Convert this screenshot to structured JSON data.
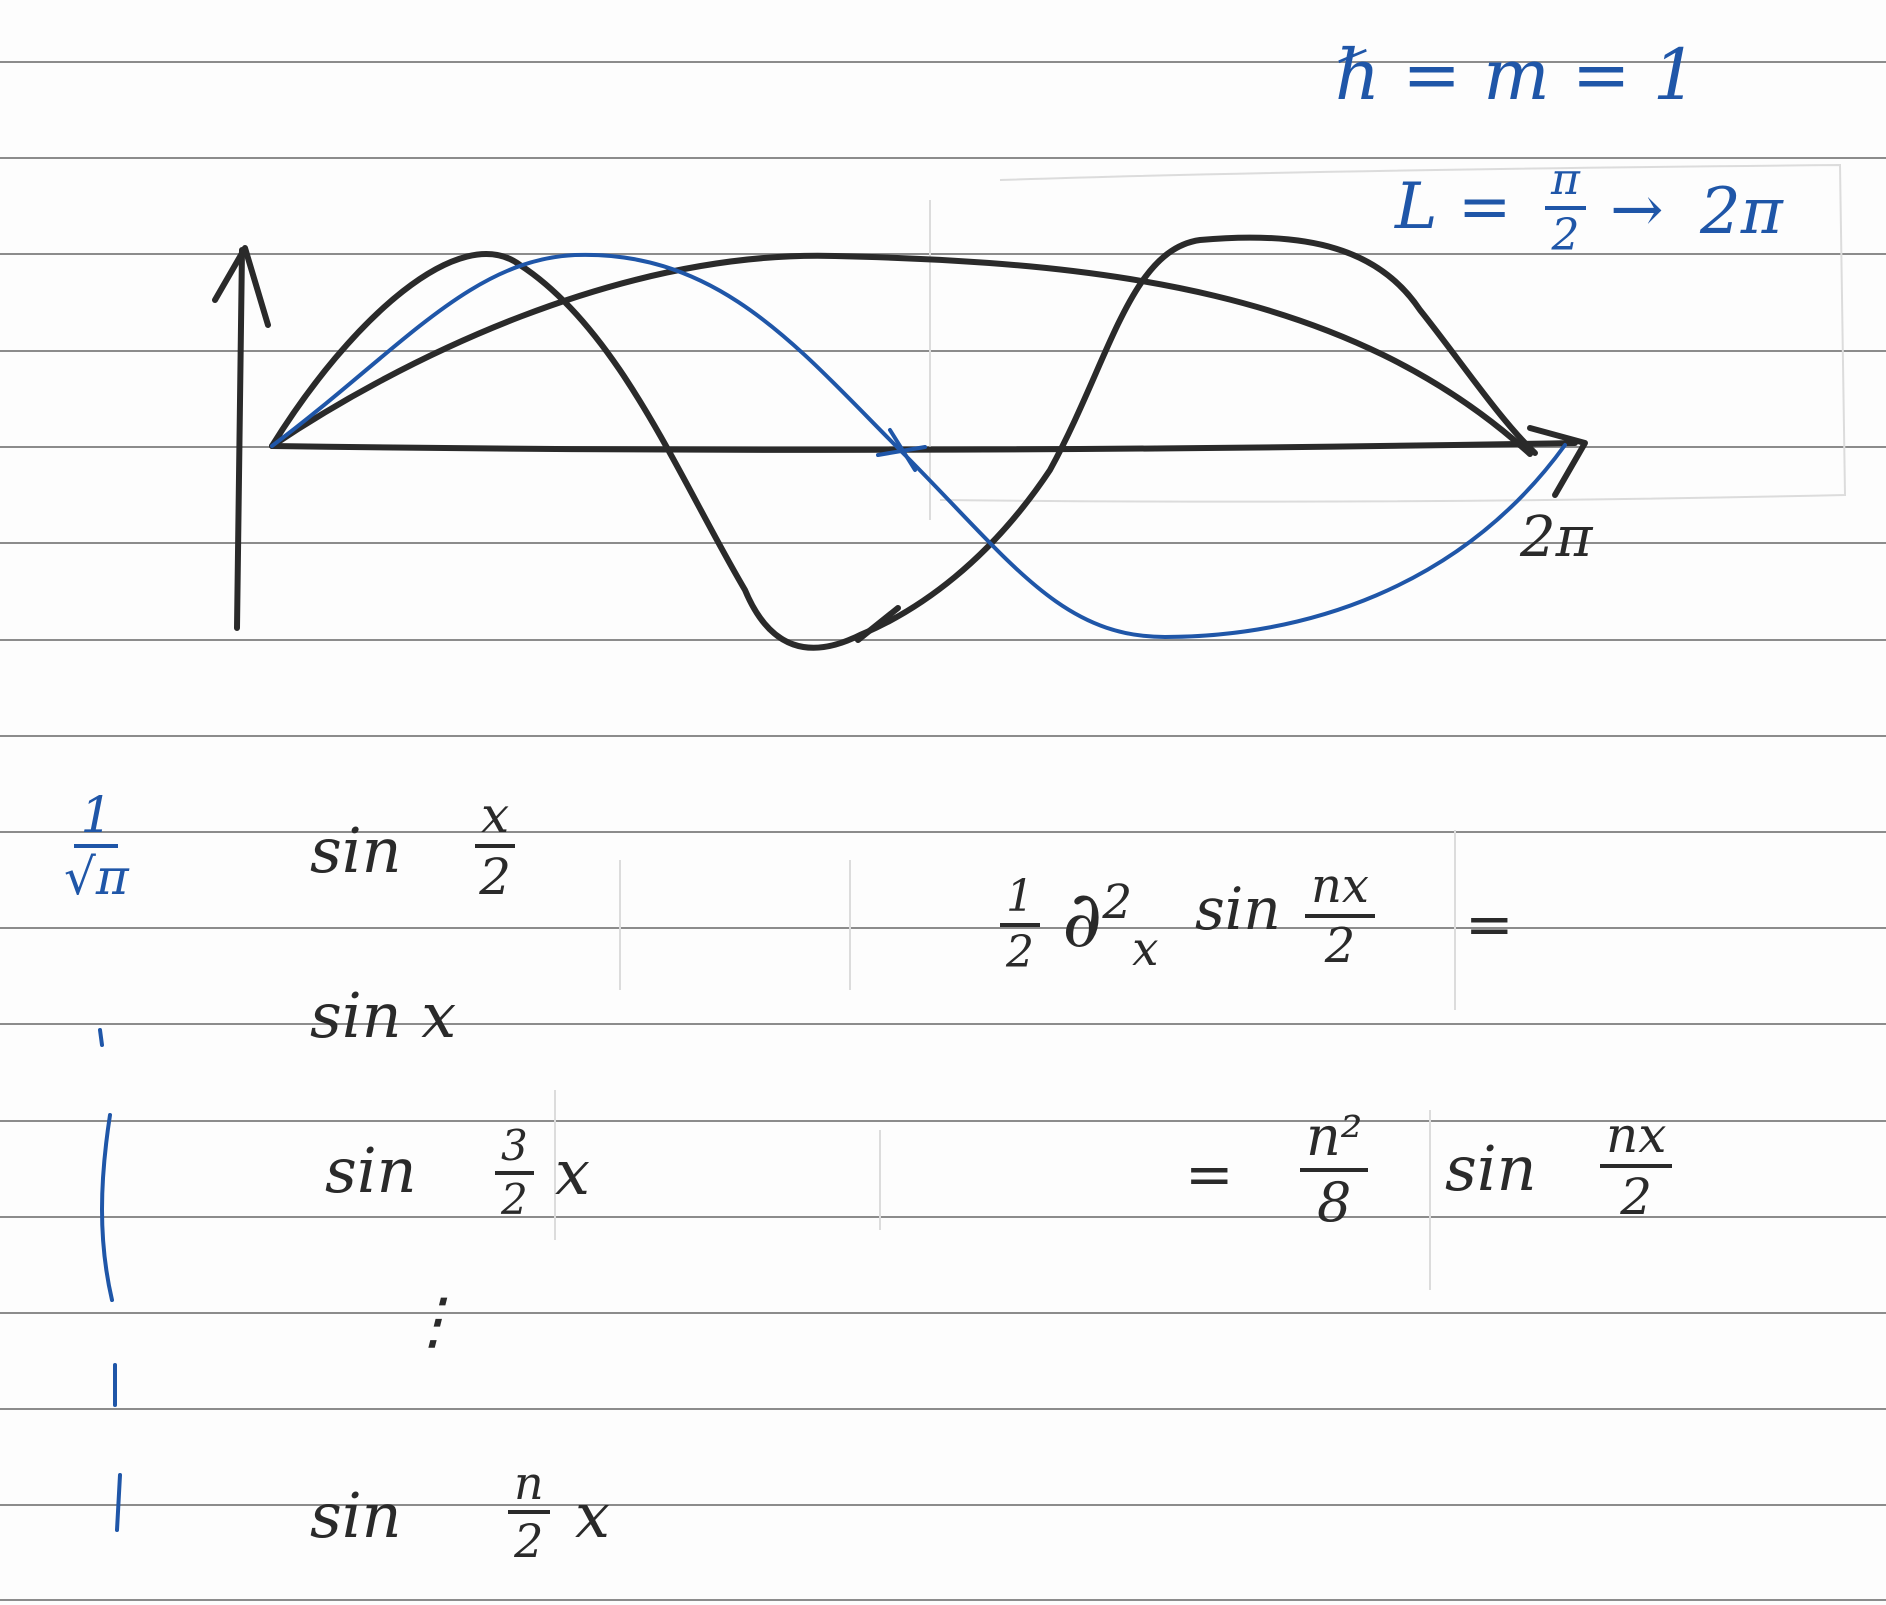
{
  "params": {
    "hbar_eq": "ℏ = m = 1",
    "L_prefix": "L =",
    "L_from_num": "π",
    "L_from_den": "2",
    "L_arrow": "→",
    "L_to": "2π"
  },
  "plot": {
    "x_end_label": "2π"
  },
  "normalization": {
    "num": "1",
    "den": "√π"
  },
  "sine_list": {
    "row1_prefix": "sin",
    "row1_num": "x",
    "row1_den": "2",
    "row2": "sin x",
    "row3_prefix": "sin",
    "row3_num": "3",
    "row3_den": "2",
    "row3_suffix": "x",
    "ellipsis": "⋮",
    "row4_prefix": "sin",
    "row4_num": "n",
    "row4_den": "2",
    "row4_suffix": "x"
  },
  "eigen_eq": {
    "half_num": "1",
    "half_den": "2",
    "deriv_op": "∂",
    "deriv_power": "2",
    "deriv_var": "x",
    "sin_label": "sin",
    "arg_num": "nx",
    "arg_den": "2",
    "equals_1": "=",
    "equals_2": "=",
    "coef_num": "n²",
    "coef_den": "8",
    "rhs_sin": "sin",
    "rhs_num": "nx",
    "rhs_den": "2"
  },
  "colors": {
    "ink_black": "#2a2a2a",
    "ink_blue": "#1f56a8",
    "rule_line": "#8c8c8c"
  }
}
